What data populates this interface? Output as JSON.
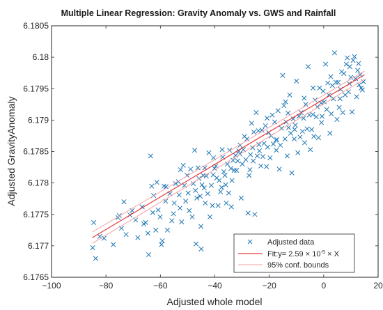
{
  "chart_data": {
    "type": "scatter",
    "title": "Multiple Linear Regression: Gravity Anomaly vs. GWS and Rainfall",
    "xlabel": "Adjusted whole model",
    "ylabel": "Adjusted GravityAnomaly",
    "xlim": [
      -100,
      20
    ],
    "ylim": [
      6.1765,
      6.1805
    ],
    "xticks": [
      -100,
      -80,
      -60,
      -40,
      -20,
      0,
      20
    ],
    "xtick_labels": [
      "−100",
      "−80",
      "−60",
      "−40",
      "−20",
      "0",
      "20"
    ],
    "yticks": [
      6.1765,
      6.177,
      6.1775,
      6.178,
      6.1785,
      6.179,
      6.1795,
      6.18,
      6.1805
    ],
    "ytick_labels": [
      "6.1765",
      "6.177",
      "6.1775",
      "6.178",
      "6.1785",
      "6.179",
      "6.1795",
      "6.18",
      "6.1805"
    ],
    "grid": false,
    "legend_position": "bottom-right",
    "legend": {
      "data": "Adjusted data",
      "fit_prefix": "Fit:y= 2.59 × 10",
      "fit_exp": "-5",
      "fit_suffix": " × X",
      "bounds": "95% conf. bounds"
    },
    "colors": {
      "data": "#1f77b4",
      "fit": "#e8383b",
      "bounds": "#f4a3a3"
    },
    "fit": {
      "x": [
        -85,
        15
      ],
      "y": [
        6.17713,
        6.17972
      ],
      "upper": [
        6.17722,
        6.17978
      ],
      "lower": [
        6.17704,
        6.17965
      ]
    },
    "series": [
      {
        "values": [
          [
            -84.5,
            6.17737
          ],
          [
            -84.9,
            6.17697
          ],
          [
            -83.8,
            6.1768
          ],
          [
            -82.3,
            6.17715
          ],
          [
            -75.6,
            6.17745
          ],
          [
            -75.1,
            6.17748
          ],
          [
            -74.3,
            6.17728
          ],
          [
            -73.4,
            6.1777
          ],
          [
            -72.6,
            6.17718
          ],
          [
            -71.2,
            6.17749
          ],
          [
            -69.1,
            6.17741
          ],
          [
            -68.3,
            6.17713
          ],
          [
            -66.7,
            6.17762
          ],
          [
            -65.4,
            6.17737
          ],
          [
            -64.6,
            6.1772
          ],
          [
            -64.3,
            6.17686
          ],
          [
            -63.6,
            6.17843
          ],
          [
            -63.2,
            6.17795
          ],
          [
            -62.8,
            6.17753
          ],
          [
            -62.5,
            6.1778
          ],
          [
            -61.7,
            6.17725
          ],
          [
            -60.8,
            6.17757
          ],
          [
            -60.1,
            6.17746
          ],
          [
            -59.6,
            6.17702
          ],
          [
            -59.3,
            6.17708
          ],
          [
            -58.7,
            6.17795
          ],
          [
            -58.1,
            6.17771
          ],
          [
            -57.4,
            6.17725
          ],
          [
            -56.5,
            6.17783
          ],
          [
            -55.8,
            6.1774
          ],
          [
            -55.2,
            6.17751
          ],
          [
            -54.9,
            6.17768
          ],
          [
            -53.4,
            6.17802
          ],
          [
            -53.1,
            6.17781
          ],
          [
            -52.8,
            6.1776
          ],
          [
            -52.6,
            6.17821
          ],
          [
            -51.6,
            6.17828
          ],
          [
            -51.2,
            6.17796
          ],
          [
            -50.7,
            6.17771
          ],
          [
            -49.8,
            6.17784
          ],
          [
            -49.4,
            6.17756
          ],
          [
            -48.9,
            6.17822
          ],
          [
            -48.3,
            6.17746
          ],
          [
            -47.9,
            6.17799
          ],
          [
            -47.4,
            6.17852
          ],
          [
            -47.1,
            6.17788
          ],
          [
            -46.6,
            6.17776
          ],
          [
            -46.2,
            6.17824
          ],
          [
            -45.8,
            6.17807
          ],
          [
            -45.4,
            6.17779
          ],
          [
            -45.1,
            6.17731
          ],
          [
            -44.7,
            6.17797
          ],
          [
            -44.3,
            6.17812
          ],
          [
            -43.9,
            6.17792
          ],
          [
            -43.5,
            6.17768
          ],
          [
            -43.1,
            6.17811
          ],
          [
            -42.6,
            6.17783
          ],
          [
            -42.2,
            6.17848
          ],
          [
            -41.8,
            6.17746
          ],
          [
            -41.3,
            6.17796
          ],
          [
            -40.9,
            6.17764
          ],
          [
            -40.5,
            6.1784
          ],
          [
            -40.1,
            6.17823
          ],
          [
            -39.6,
            6.17827
          ],
          [
            -39.3,
            6.17808
          ],
          [
            -38.8,
            6.17764
          ],
          [
            -38.4,
            6.17804
          ],
          [
            -37.9,
            6.17786
          ],
          [
            -37.5,
            6.17793
          ],
          [
            -37.1,
            6.17841
          ],
          [
            -36.7,
            6.17818
          ],
          [
            -36.3,
            6.17812
          ],
          [
            -35.8,
            6.17768
          ],
          [
            -35.4,
            6.1783
          ],
          [
            -34.9,
            6.17784
          ],
          [
            -34.6,
            6.17852
          ],
          [
            -34.1,
            6.17823
          ],
          [
            -33.7,
            6.17804
          ],
          [
            -33.3,
            6.17836
          ],
          [
            -32.9,
            6.1782
          ],
          [
            -32.4,
            6.17844
          ],
          [
            -32.0,
            6.1782
          ],
          [
            -31.6,
            6.17835
          ],
          [
            -31.2,
            6.17851
          ],
          [
            -30.7,
            6.1786
          ],
          [
            -30.3,
            6.17776
          ],
          [
            -29.9,
            6.1783
          ],
          [
            -29.5,
            6.17853
          ],
          [
            -29.1,
            6.17874
          ],
          [
            -28.6,
            6.17837
          ],
          [
            -28.2,
            6.1787
          ],
          [
            -27.8,
            6.17752
          ],
          [
            -27.4,
            6.17812
          ],
          [
            -26.9,
            6.17845
          ],
          [
            -26.5,
            6.17895
          ],
          [
            -26.1,
            6.17856
          ],
          [
            -25.7,
            6.17881
          ],
          [
            -25.3,
            6.1775
          ],
          [
            -24.8,
            6.17912
          ],
          [
            -24.4,
            6.17843
          ],
          [
            -24.0,
            6.17883
          ],
          [
            -23.6,
            6.17851
          ],
          [
            -23.1,
            6.17827
          ],
          [
            -22.7,
            6.17884
          ],
          [
            -22.3,
            6.17842
          ],
          [
            -21.9,
            6.17863
          ],
          [
            -21.4,
            6.17891
          ],
          [
            -21.0,
            6.17826
          ],
          [
            -20.6,
            6.17857
          ],
          [
            -20.2,
            6.1788
          ],
          [
            -19.7,
            6.1784
          ],
          [
            -19.3,
            6.17875
          ],
          [
            -18.9,
            6.17908
          ],
          [
            -18.5,
            6.17862
          ],
          [
            -18.0,
            6.17897
          ],
          [
            -17.6,
            6.17868
          ],
          [
            -17.2,
            6.17869
          ],
          [
            -16.8,
            6.17915
          ],
          [
            -16.3,
            6.17822
          ],
          [
            -15.9,
            6.1786
          ],
          [
            -15.5,
            6.17887
          ],
          [
            -15.1,
            6.17971
          ],
          [
            -14.6,
            6.17923
          ],
          [
            -14.2,
            6.1787
          ],
          [
            -13.8,
            6.17897
          ],
          [
            -13.4,
            6.17843
          ],
          [
            -12.9,
            6.17888
          ],
          [
            -12.5,
            6.1794
          ],
          [
            -12.1,
            6.17879
          ],
          [
            -11.7,
            6.17816
          ],
          [
            -11.2,
            6.17902
          ],
          [
            -10.8,
            6.1787
          ],
          [
            -10.4,
            6.17892
          ],
          [
            -10.0,
            6.17962
          ],
          [
            -9.5,
            6.17848
          ],
          [
            -9.1,
            6.17906
          ],
          [
            -8.7,
            6.17873
          ],
          [
            -8.3,
            6.17912
          ],
          [
            -7.8,
            6.17882
          ],
          [
            -7.4,
            6.17903
          ],
          [
            -7.0,
            6.17864
          ],
          [
            -6.6,
            6.17925
          ],
          [
            -6.1,
            6.17886
          ],
          [
            -5.7,
            6.17985
          ],
          [
            -5.3,
            6.17908
          ],
          [
            -4.9,
            6.17853
          ],
          [
            -4.4,
            6.17885
          ],
          [
            -4.0,
            6.17909
          ],
          [
            -3.6,
            6.17874
          ],
          [
            -3.2,
            6.17932
          ],
          [
            -2.7,
            6.17905
          ],
          [
            -2.3,
            6.17921
          ],
          [
            -1.9,
            6.17872
          ],
          [
            -1.5,
            6.17951
          ],
          [
            -1.0,
            6.17927
          ],
          [
            -0.6,
            6.17906
          ],
          [
            -0.2,
            6.17946
          ],
          [
            0.2,
            6.17929
          ],
          [
            0.7,
            6.17989
          ],
          [
            1.1,
            6.17917
          ],
          [
            1.5,
            6.17959
          ],
          [
            1.9,
            6.1794
          ],
          [
            2.3,
            6.17879
          ],
          [
            2.8,
            6.1791
          ],
          [
            3.2,
            6.17955
          ],
          [
            3.6,
            6.17934
          ],
          [
            4.0,
            6.18007
          ],
          [
            4.5,
            6.1796
          ],
          [
            4.9,
            6.17901
          ],
          [
            5.3,
            6.1796
          ],
          [
            5.7,
            6.1792
          ],
          [
            6.2,
            6.17949
          ],
          [
            6.6,
            6.17977
          ],
          [
            7.0,
            6.17912
          ],
          [
            7.4,
            6.17974
          ],
          [
            7.9,
            6.1794
          ],
          [
            8.3,
            6.17989
          ],
          [
            8.7,
            6.17999
          ],
          [
            9.1,
            6.17945
          ],
          [
            9.6,
            6.17985
          ],
          [
            10.0,
            6.17968
          ],
          [
            10.4,
            6.17913
          ],
          [
            10.8,
            6.17995
          ],
          [
            11.3,
            6.18001
          ],
          [
            11.7,
            6.17966
          ],
          [
            12.1,
            6.17937
          ],
          [
            12.5,
            6.17979
          ],
          [
            13.0,
            6.17956
          ],
          [
            13.4,
            6.17972
          ],
          [
            13.8,
            6.17951
          ],
          [
            14.2,
            6.17948
          ],
          [
            14.6,
            6.17961
          ],
          [
            -80.7,
            6.17712
          ],
          [
            -77.3,
            6.17702
          ],
          [
            -70.4,
            6.17756
          ],
          [
            -66.1,
            6.17735
          ],
          [
            -61.3,
            6.17801
          ],
          [
            -57.9,
            6.17794
          ],
          [
            -54.4,
            6.17799
          ],
          [
            -50.2,
            6.17812
          ],
          [
            -46.9,
            6.17703
          ],
          [
            -43.7,
            6.17824
          ],
          [
            -40.6,
            6.17813
          ],
          [
            -37.3,
            6.17853
          ],
          [
            -33.9,
            6.17762
          ],
          [
            -30.8,
            6.17846
          ],
          [
            -27.1,
            6.17821
          ],
          [
            -23.8,
            6.17861
          ],
          [
            -20.8,
            6.17903
          ],
          [
            -17.4,
            6.17852
          ],
          [
            -14.0,
            6.17929
          ],
          [
            -10.7,
            6.17885
          ],
          [
            -7.2,
            6.17935
          ],
          [
            -3.9,
            6.17951
          ],
          [
            -0.8,
            6.17896
          ],
          [
            2.6,
            6.17969
          ],
          [
            6.0,
            6.17934
          ],
          [
            9.4,
            6.17958
          ],
          [
            12.8,
            6.1799
          ],
          [
            -52.2,
            6.17738
          ],
          [
            -45.0,
            6.17695
          ],
          [
            -36.0,
            6.17797
          ],
          [
            -25.9,
            6.17835
          ],
          [
            -13.1,
            6.17911
          ]
        ]
      }
    ]
  }
}
